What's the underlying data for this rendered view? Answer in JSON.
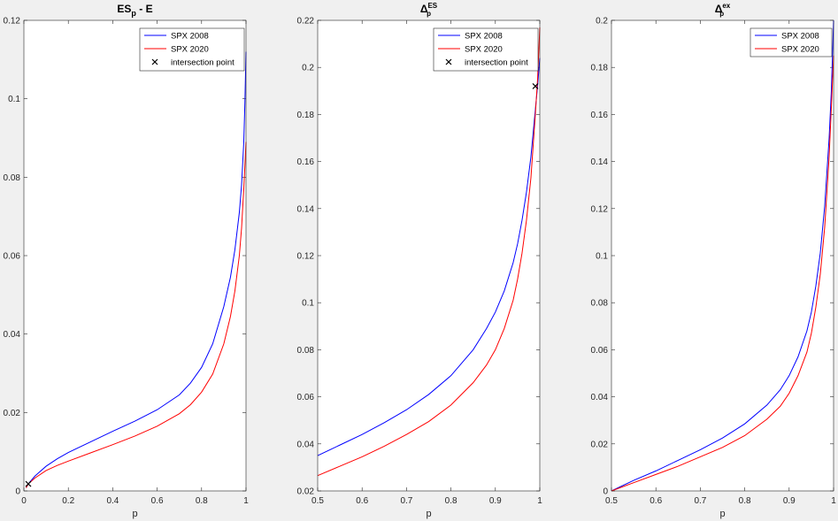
{
  "chart_data": [
    {
      "type": "line",
      "title": {
        "main": "ES",
        "sub": "p",
        "tail": " - E"
      },
      "xlabel": "p",
      "ylabel": "",
      "xlim": [
        0,
        1
      ],
      "ylim": [
        0,
        0.12
      ],
      "xticks": [
        "0",
        "0.2",
        "0.4",
        "0.6",
        "0.8",
        "1"
      ],
      "yticks": [
        "0",
        "0.02",
        "0.04",
        "0.06",
        "0.08",
        "0.1",
        "0.12"
      ],
      "grid": false,
      "legend_position": "top-right",
      "legend": [
        "SPX 2008",
        "SPX 2020",
        "intersection point"
      ],
      "series": [
        {
          "name": "SPX 2008",
          "color": "#0000ff",
          "x": [
            0.01,
            0.02,
            0.05,
            0.1,
            0.15,
            0.2,
            0.3,
            0.4,
            0.5,
            0.6,
            0.7,
            0.75,
            0.8,
            0.85,
            0.9,
            0.93,
            0.95,
            0.97,
            0.98,
            0.99,
            0.995,
            1.0
          ],
          "y": [
            0.0008,
            0.0018,
            0.0038,
            0.0063,
            0.0082,
            0.0098,
            0.0125,
            0.0152,
            0.0178,
            0.0207,
            0.0245,
            0.0275,
            0.0315,
            0.0375,
            0.047,
            0.0545,
            0.0615,
            0.071,
            0.078,
            0.089,
            0.099,
            0.112
          ]
        },
        {
          "name": "SPX 2020",
          "color": "#ff0000",
          "x": [
            0.01,
            0.02,
            0.05,
            0.1,
            0.15,
            0.2,
            0.3,
            0.4,
            0.5,
            0.6,
            0.7,
            0.75,
            0.8,
            0.85,
            0.9,
            0.93,
            0.95,
            0.97,
            0.98,
            0.99,
            0.995,
            1.0
          ],
          "y": [
            0.0008,
            0.0018,
            0.0033,
            0.0052,
            0.0065,
            0.0076,
            0.0097,
            0.0118,
            0.014,
            0.0165,
            0.0197,
            0.022,
            0.0252,
            0.0298,
            0.0375,
            0.0445,
            0.051,
            0.06,
            0.067,
            0.077,
            0.083,
            0.089
          ]
        }
      ],
      "markers": [
        {
          "x": 0.02,
          "y": 0.0018,
          "symbol": "x"
        }
      ]
    },
    {
      "type": "line",
      "title": {
        "main": "Δ",
        "sub": "p",
        "sup": "ES"
      },
      "xlabel": "p",
      "ylabel": "",
      "xlim": [
        0.5,
        1
      ],
      "ylim": [
        0.02,
        0.22
      ],
      "xticks": [
        "0.5",
        "0.6",
        "0.7",
        "0.8",
        "0.9",
        "1"
      ],
      "yticks": [
        "0.02",
        "0.04",
        "0.06",
        "0.08",
        "0.1",
        "0.12",
        "0.14",
        "0.16",
        "0.18",
        "0.2",
        "0.22"
      ],
      "grid": false,
      "legend_position": "top-right",
      "legend": [
        "SPX 2008",
        "SPX 2020",
        "intersection point"
      ],
      "series": [
        {
          "name": "SPX 2008",
          "color": "#0000ff",
          "x": [
            0.5,
            0.55,
            0.6,
            0.65,
            0.7,
            0.75,
            0.8,
            0.85,
            0.88,
            0.9,
            0.92,
            0.94,
            0.95,
            0.96,
            0.97,
            0.98,
            0.99,
            0.995,
            1.0
          ],
          "y": [
            0.035,
            0.0395,
            0.044,
            0.049,
            0.0545,
            0.061,
            0.069,
            0.08,
            0.089,
            0.096,
            0.105,
            0.117,
            0.125,
            0.135,
            0.147,
            0.162,
            0.182,
            0.192,
            0.204
          ]
        },
        {
          "name": "SPX 2020",
          "color": "#ff0000",
          "x": [
            0.5,
            0.55,
            0.6,
            0.65,
            0.7,
            0.75,
            0.8,
            0.85,
            0.88,
            0.9,
            0.92,
            0.94,
            0.95,
            0.96,
            0.97,
            0.98,
            0.99,
            0.995,
            1.0
          ],
          "y": [
            0.0265,
            0.0305,
            0.0345,
            0.039,
            0.044,
            0.0495,
            0.0565,
            0.066,
            0.0735,
            0.08,
            0.089,
            0.101,
            0.11,
            0.121,
            0.135,
            0.153,
            0.18,
            0.195,
            0.217
          ]
        }
      ],
      "markers": [
        {
          "x": 0.99,
          "y": 0.192,
          "symbol": "x"
        }
      ]
    },
    {
      "type": "line",
      "title": {
        "main": "Δ",
        "sub": "p",
        "sup": "ex"
      },
      "xlabel": "p",
      "ylabel": "",
      "xlim": [
        0.5,
        1
      ],
      "ylim": [
        0,
        0.2
      ],
      "xticks": [
        "0.5",
        "0.6",
        "0.7",
        "0.8",
        "0.9",
        "1"
      ],
      "yticks": [
        "0",
        "0.02",
        "0.04",
        "0.06",
        "0.08",
        "0.1",
        "0.12",
        "0.14",
        "0.16",
        "0.18",
        "0.2"
      ],
      "grid": false,
      "legend_position": "top-right",
      "legend": [
        "SPX 2008",
        "SPX 2020"
      ],
      "series": [
        {
          "name": "SPX 2008",
          "color": "#0000ff",
          "x": [
            0.5,
            0.55,
            0.6,
            0.65,
            0.7,
            0.75,
            0.8,
            0.85,
            0.88,
            0.9,
            0.92,
            0.94,
            0.95,
            0.96,
            0.97,
            0.98,
            0.99,
            0.995,
            1.0
          ],
          "y": [
            0.0,
            0.0045,
            0.0085,
            0.013,
            0.0175,
            0.0225,
            0.0285,
            0.0365,
            0.043,
            0.049,
            0.057,
            0.068,
            0.076,
            0.087,
            0.101,
            0.121,
            0.15,
            0.17,
            0.2
          ]
        },
        {
          "name": "SPX 2020",
          "color": "#ff0000",
          "x": [
            0.5,
            0.55,
            0.6,
            0.65,
            0.7,
            0.75,
            0.8,
            0.85,
            0.88,
            0.9,
            0.92,
            0.94,
            0.95,
            0.96,
            0.97,
            0.98,
            0.99,
            0.995,
            1.0
          ],
          "y": [
            0.0,
            0.0035,
            0.007,
            0.0105,
            0.0145,
            0.0185,
            0.0235,
            0.0305,
            0.036,
            0.0415,
            0.049,
            0.059,
            0.067,
            0.078,
            0.092,
            0.112,
            0.142,
            0.163,
            0.185
          ]
        }
      ],
      "markers": []
    }
  ]
}
